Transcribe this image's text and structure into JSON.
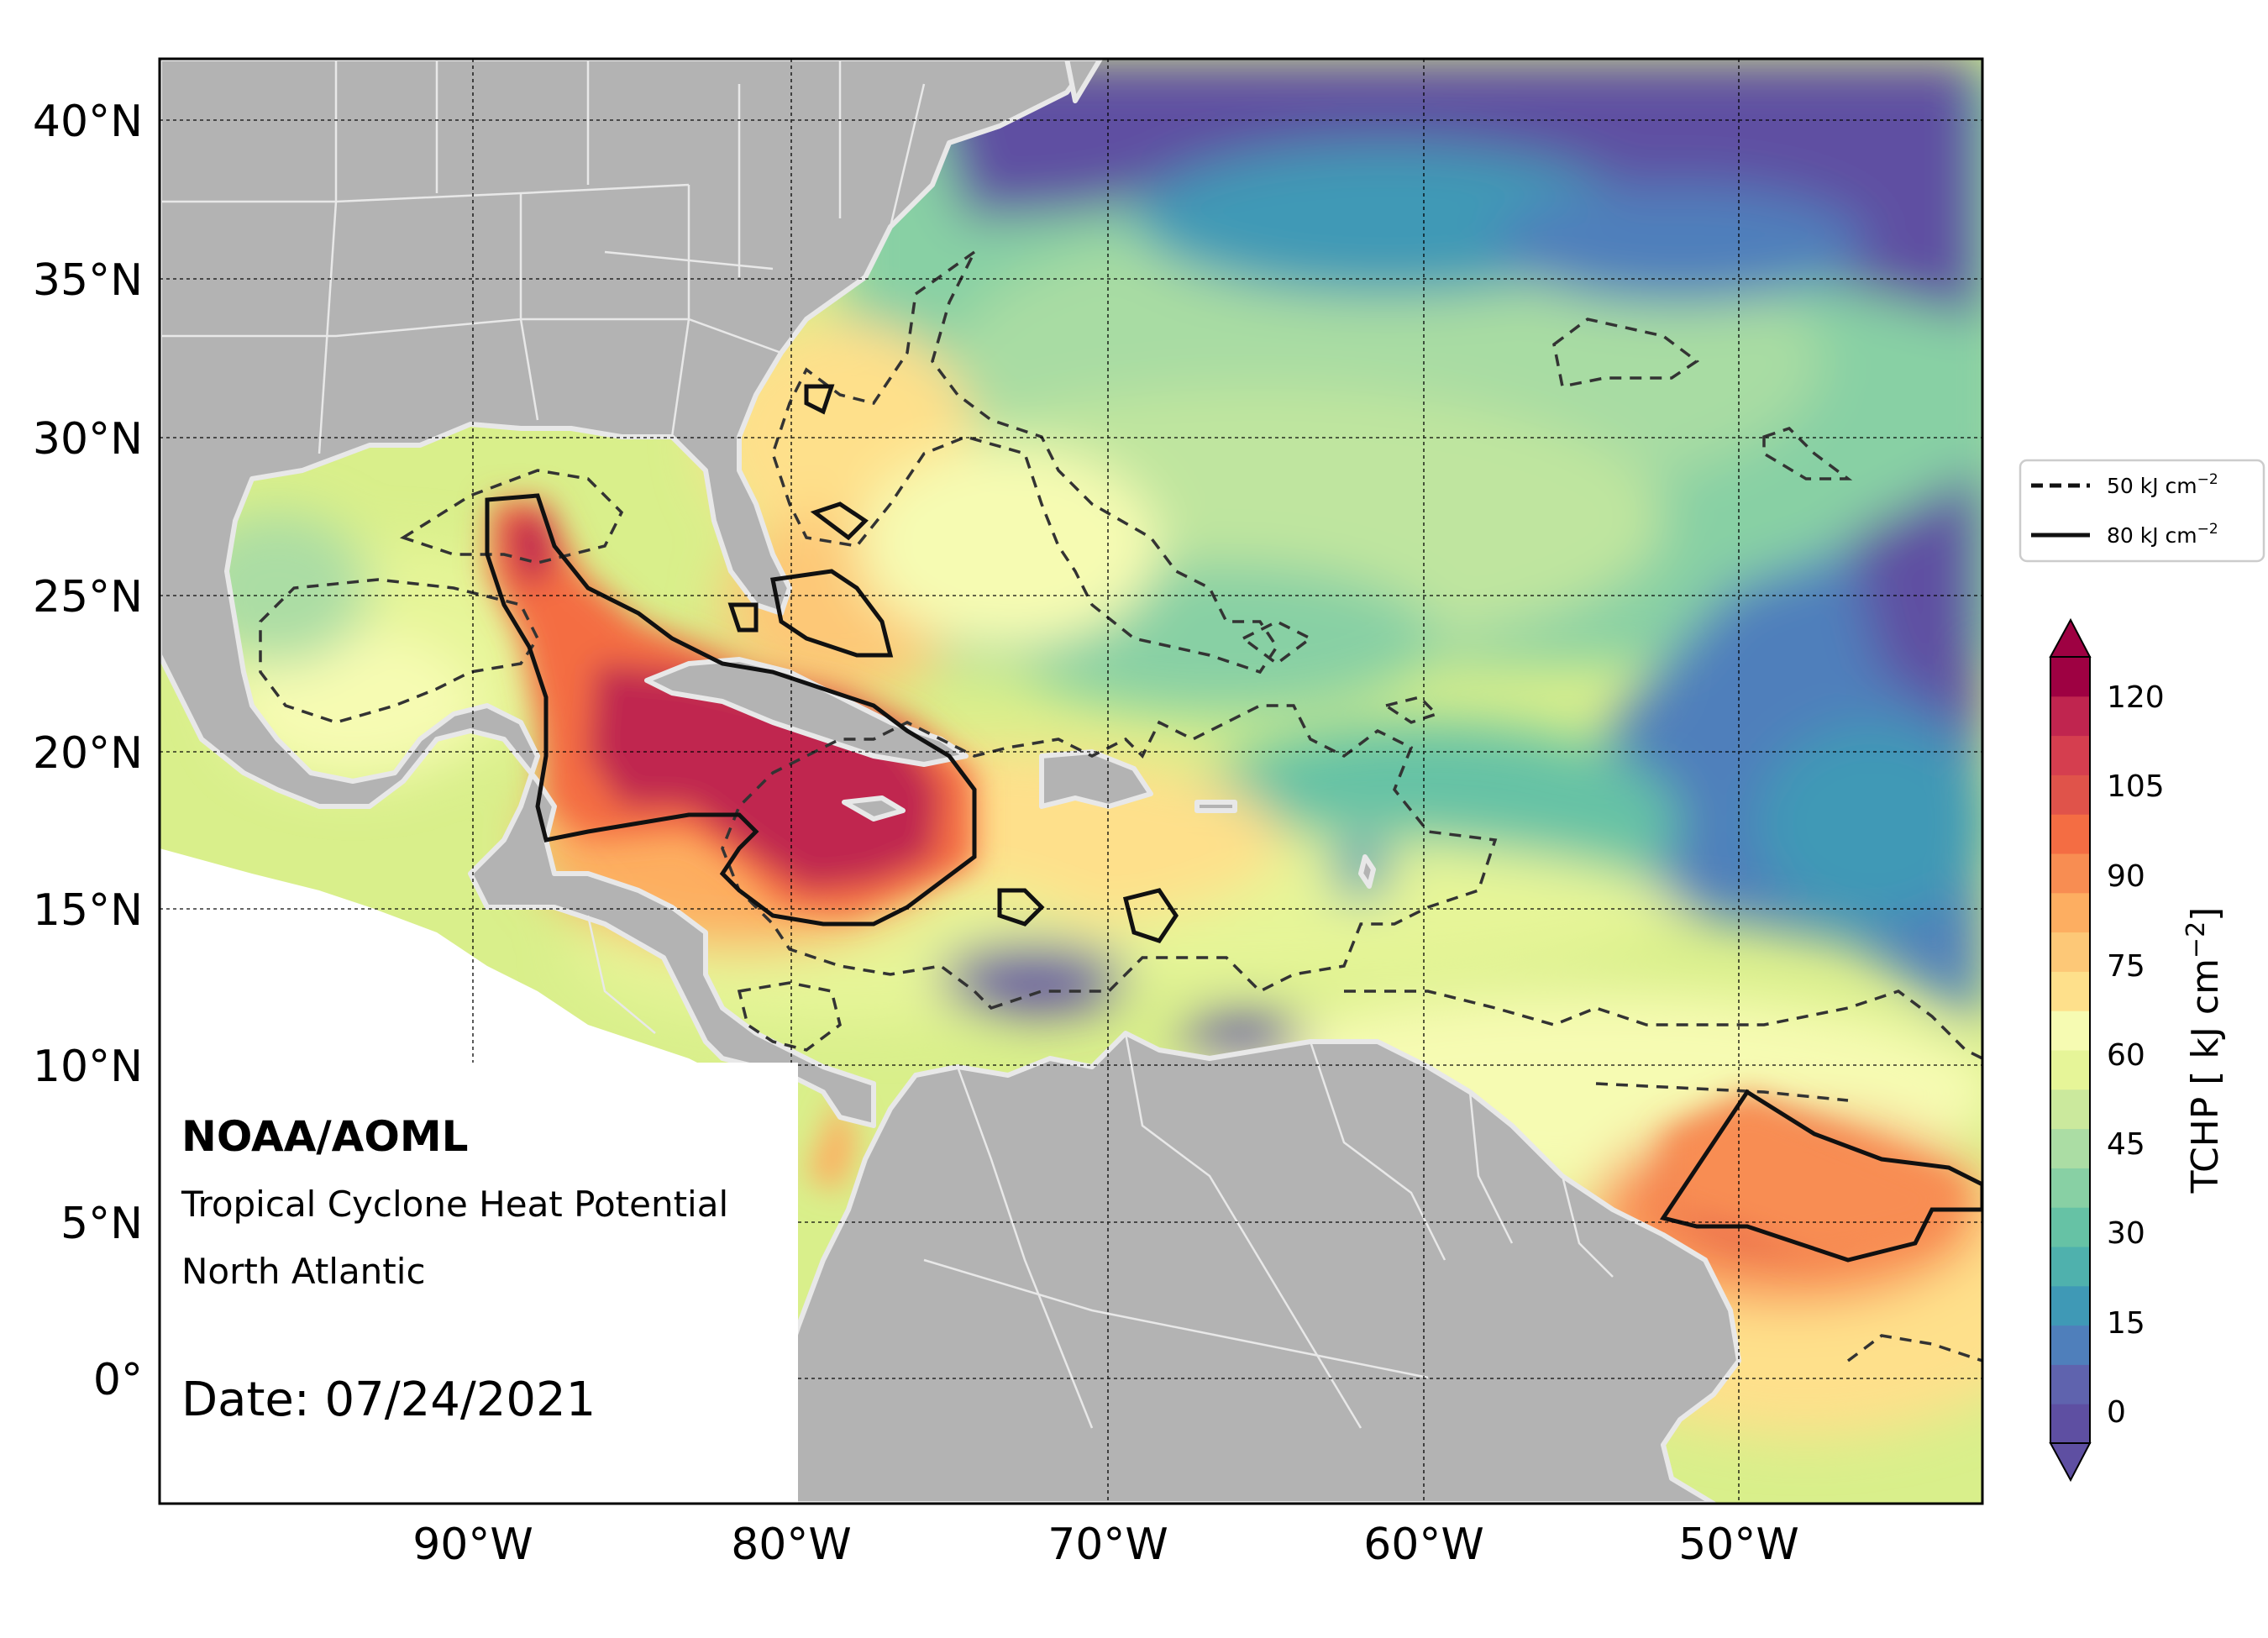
{
  "map": {
    "title_org": "NOAA/AOML",
    "subtitle": "Tropical Cyclone Heat Potential",
    "region": "North Atlantic",
    "date_text": "Date: 07/24/2021",
    "lat_ticks": [
      "40°N",
      "35°N",
      "30°N",
      "25°N",
      "20°N",
      "15°N",
      "10°N",
      "5°N",
      "0°"
    ],
    "lon_ticks": [
      "90°W",
      "80°W",
      "70°W",
      "60°W",
      "50°W"
    ],
    "legend": {
      "items": [
        {
          "label": "50 kJ cm",
          "sup": "−2",
          "style": "dashed"
        },
        {
          "label": "80 kJ cm",
          "sup": "−2",
          "style": "solid"
        }
      ]
    },
    "colorbar": {
      "ticks": [
        "120",
        "105",
        "90",
        "75",
        "60",
        "45",
        "30",
        "15",
        "0"
      ],
      "label_prefix": "TCHP [ kJ cm",
      "label_sup": "−2",
      "label_suffix": "]",
      "colors": [
        "#5e4fa2",
        "#5f63ae",
        "#4f7fbb",
        "#3f99b6",
        "#4fb1ad",
        "#66c2a5",
        "#88d0a4",
        "#abdda4",
        "#cbe99d",
        "#e6f598",
        "#f6fbb2",
        "#fee08b",
        "#fdc877",
        "#fdae61",
        "#f88d52",
        "#f46d43",
        "#e0534a",
        "#d53e4f",
        "#c0254f",
        "#9e0142"
      ]
    },
    "colors": {
      "land": "#b3b3b3",
      "border": "#e8e8e8",
      "deep_blue": "#5e4fa2",
      "hot_red": "#a7104c"
    }
  }
}
